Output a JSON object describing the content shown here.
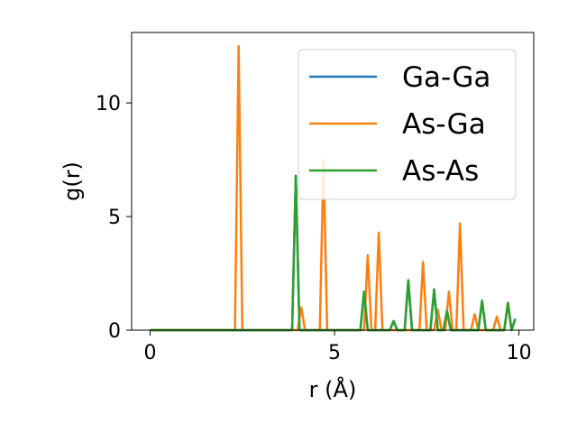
{
  "chart_data": {
    "type": "line",
    "title": "",
    "xlabel": "r (Å)",
    "ylabel": "g(r)",
    "xlim": [
      -0.5,
      10.4
    ],
    "ylim": [
      0,
      13.1
    ],
    "xticks": [
      0,
      5,
      10
    ],
    "yticks": [
      0,
      5,
      10
    ],
    "xtick_labels": [
      "0",
      "5",
      "10"
    ],
    "ytick_labels": [
      "0",
      "5",
      "10"
    ],
    "grid": false,
    "legend_position": "top-right",
    "series": [
      {
        "name": "Ga-Ga",
        "color": "#1f77b4",
        "x": [
          0,
          2.3,
          2.45,
          2.6,
          3.85,
          3.95,
          4.05,
          4.6,
          5.7,
          5.8,
          5.9,
          6.5,
          6.6,
          6.7,
          6.9,
          7.0,
          7.1,
          7.6,
          7.7,
          7.8,
          7.95,
          8.05,
          8.15,
          8.9,
          9.0,
          9.1,
          9.6,
          9.7,
          9.8,
          9.9
        ],
        "y": [
          0,
          0,
          0,
          0,
          0,
          6.8,
          0,
          0,
          0,
          1.7,
          0,
          0,
          0.4,
          0,
          0,
          2.2,
          0,
          0,
          1.8,
          0,
          0,
          0.85,
          0,
          0,
          1.3,
          0,
          0,
          1.2,
          0,
          0.5
        ]
      },
      {
        "name": "As-Ga",
        "color": "#ff7f0e",
        "x": [
          0,
          2.3,
          2.4,
          2.5,
          2.6,
          4.0,
          4.1,
          4.2,
          4.6,
          4.7,
          4.8,
          5.8,
          5.9,
          6.0,
          6.1,
          6.2,
          6.3,
          7.3,
          7.4,
          7.5,
          7.7,
          7.8,
          7.9,
          8.0,
          8.1,
          8.2,
          8.3,
          8.4,
          8.5,
          8.7,
          8.8,
          8.9,
          9.3,
          9.4,
          9.5,
          9.6,
          9.7,
          9.8
        ],
        "y": [
          0,
          0,
          12.5,
          0,
          0,
          0,
          1.0,
          0,
          0,
          7.5,
          0,
          0,
          3.3,
          0,
          0,
          4.3,
          0,
          0,
          3.0,
          0,
          0,
          0.9,
          0,
          0,
          1.7,
          0,
          0,
          4.7,
          0,
          0,
          0.7,
          0,
          0,
          0.6,
          0,
          0,
          1.2,
          0
        ]
      },
      {
        "name": "As-As",
        "color": "#2ca02c",
        "x": [
          0,
          3.85,
          3.95,
          4.05,
          4.6,
          5.7,
          5.8,
          5.9,
          6.5,
          6.6,
          6.7,
          6.9,
          7.0,
          7.1,
          7.6,
          7.7,
          7.8,
          7.95,
          8.05,
          8.15,
          8.9,
          9.0,
          9.1,
          9.6,
          9.7,
          9.8,
          9.9
        ],
        "y": [
          0,
          0,
          6.8,
          0,
          0,
          0,
          1.7,
          0,
          0,
          0.4,
          0,
          0,
          2.2,
          0,
          0,
          1.8,
          0,
          0,
          0.85,
          0,
          0,
          1.3,
          0,
          0,
          1.2,
          0,
          0.5
        ]
      }
    ]
  }
}
